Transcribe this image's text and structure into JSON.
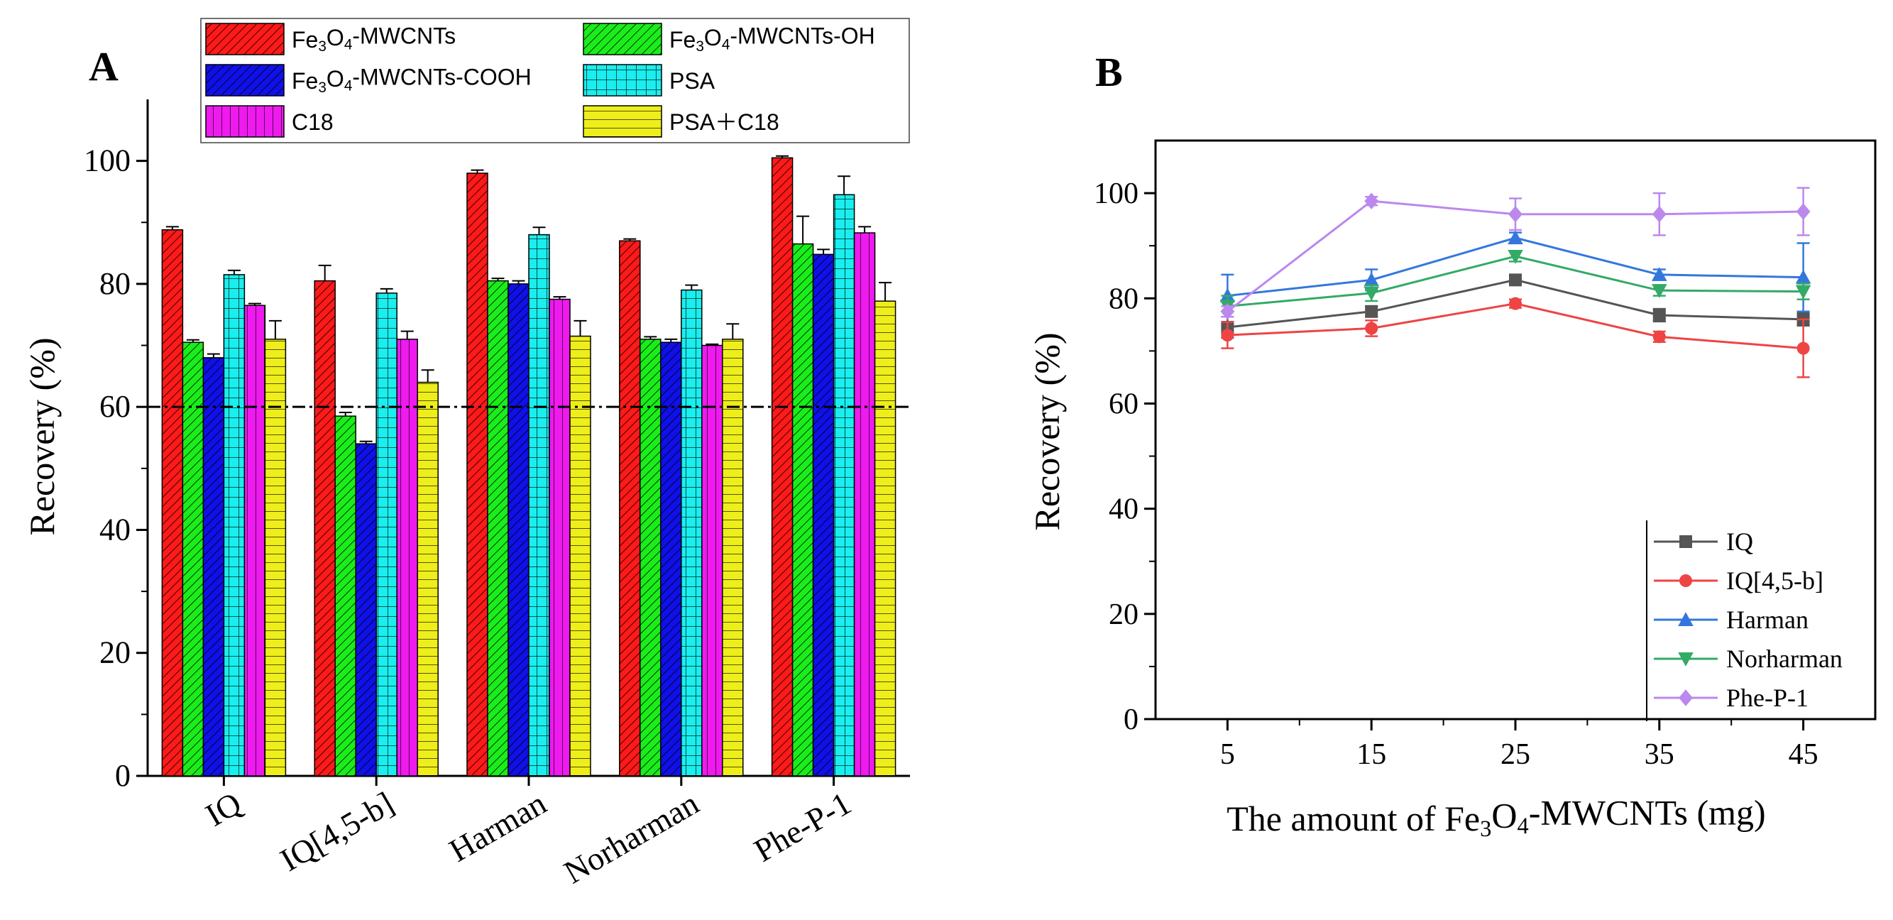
{
  "colors": {
    "red": "#ff1a1a",
    "green": "#1aee1a",
    "blue": "#1010e8",
    "cyan": "#1aeeee",
    "magenta": "#ee1aee",
    "yellow": "#eeee1a",
    "line_iq": "#555555",
    "line_iq45b": "#ee4444",
    "line_harman": "#3377dd",
    "line_norharman": "#33aa66",
    "line_php1": "#bb88ee"
  },
  "chart_data": [
    {
      "type": "bar",
      "panel_label": "A",
      "ylabel": "Recovery (%)",
      "ylim": [
        0,
        110
      ],
      "yticks": [
        "0",
        "20",
        "40",
        "60",
        "80",
        "100"
      ],
      "reference_line": 60,
      "categories": [
        "IQ",
        "IQ[4,5-b]",
        "Harman",
        "Norharman",
        "Phe-P-1"
      ],
      "series": [
        {
          "name": "Fe3O4-MWCNTs",
          "legend_base": "Fe",
          "legend_parts": [
            "Fe",
            "3",
            "O",
            "4",
            "-MWCNTs"
          ],
          "color_key": "red",
          "pattern": "diag",
          "values": [
            88.8,
            80.5,
            98.0,
            87.0,
            100.5
          ],
          "errors": [
            0.5,
            2.5,
            0.5,
            0.3,
            0.3
          ]
        },
        {
          "name": "Fe3O4-MWCNTs-OH",
          "legend_parts": [
            "Fe",
            "3",
            "O",
            "4",
            "-MWCNTs-OH"
          ],
          "color_key": "green",
          "pattern": "diag",
          "values": [
            70.5,
            58.5,
            80.5,
            71.0,
            86.5
          ],
          "errors": [
            0.4,
            0.6,
            0.4,
            0.4,
            4.5
          ]
        },
        {
          "name": "Fe3O4-MWCNTs-COOH",
          "legend_parts": [
            "Fe",
            "3",
            "O",
            "4",
            "-MWCNTs-COOH"
          ],
          "color_key": "blue",
          "pattern": "diag",
          "values": [
            68.0,
            54.0,
            80.0,
            70.5,
            84.8
          ],
          "errors": [
            0.6,
            0.4,
            0.5,
            0.5,
            0.8
          ]
        },
        {
          "name": "PSA",
          "legend_parts": [
            "PSA"
          ],
          "color_key": "cyan",
          "pattern": "grid",
          "values": [
            81.5,
            78.5,
            88.0,
            79.0,
            94.5
          ],
          "errors": [
            0.7,
            0.7,
            1.2,
            0.8,
            3.0
          ]
        },
        {
          "name": "C18",
          "legend_parts": [
            "C18"
          ],
          "color_key": "magenta",
          "pattern": "vert",
          "values": [
            76.5,
            71.0,
            77.5,
            70.0,
            88.3
          ],
          "errors": [
            0.3,
            1.3,
            0.4,
            0.2,
            1.0
          ]
        },
        {
          "name": "PSA＋C18",
          "legend_parts": [
            "PSA＋C18"
          ],
          "color_key": "yellow",
          "pattern": "horiz",
          "values": [
            71.0,
            64.0,
            71.5,
            71.0,
            77.2
          ],
          "errors": [
            3.0,
            2.0,
            2.5,
            2.5,
            3.0
          ]
        }
      ]
    },
    {
      "type": "line",
      "panel_label": "B",
      "ylabel": "Recovery (%)",
      "xlabel_parts": [
        "The amount of Fe",
        "3",
        "O",
        "4",
        "-MWCNTs (mg)"
      ],
      "x": [
        5,
        15,
        25,
        35,
        45
      ],
      "xlim": [
        0,
        50
      ],
      "ylim": [
        0,
        110
      ],
      "xticks": [
        "5",
        "15",
        "25",
        "35",
        "45"
      ],
      "yticks": [
        "0",
        "20",
        "40",
        "60",
        "80",
        "100"
      ],
      "series": [
        {
          "name": "IQ",
          "marker": "square",
          "color_key": "line_iq",
          "values": [
            74.5,
            77.5,
            83.5,
            76.8,
            76.0
          ],
          "errors": [
            2.0,
            1.0,
            0.8,
            1.2,
            1.2
          ]
        },
        {
          "name": "IQ[4,5-b]",
          "marker": "circle",
          "color_key": "line_iq45b",
          "values": [
            73.0,
            74.3,
            79.0,
            72.7,
            70.5
          ],
          "errors": [
            2.5,
            1.5,
            0.8,
            1.0,
            5.5
          ]
        },
        {
          "name": "Harman",
          "marker": "triangle-up",
          "color_key": "line_harman",
          "values": [
            80.5,
            83.5,
            91.5,
            84.5,
            84.0
          ],
          "errors": [
            4.0,
            2.0,
            1.0,
            1.0,
            6.5
          ]
        },
        {
          "name": "Norharman",
          "marker": "triangle-down",
          "color_key": "line_norharman",
          "values": [
            78.5,
            81.0,
            88.0,
            81.5,
            81.3
          ],
          "errors": [
            2.0,
            1.5,
            1.0,
            1.0,
            1.5
          ]
        },
        {
          "name": "Phe-P-1",
          "marker": "diamond",
          "color_key": "line_php1",
          "values": [
            77.5,
            98.5,
            96.0,
            96.0,
            96.5
          ],
          "errors": [
            1.0,
            0.8,
            3.0,
            4.0,
            4.5
          ]
        }
      ]
    }
  ]
}
